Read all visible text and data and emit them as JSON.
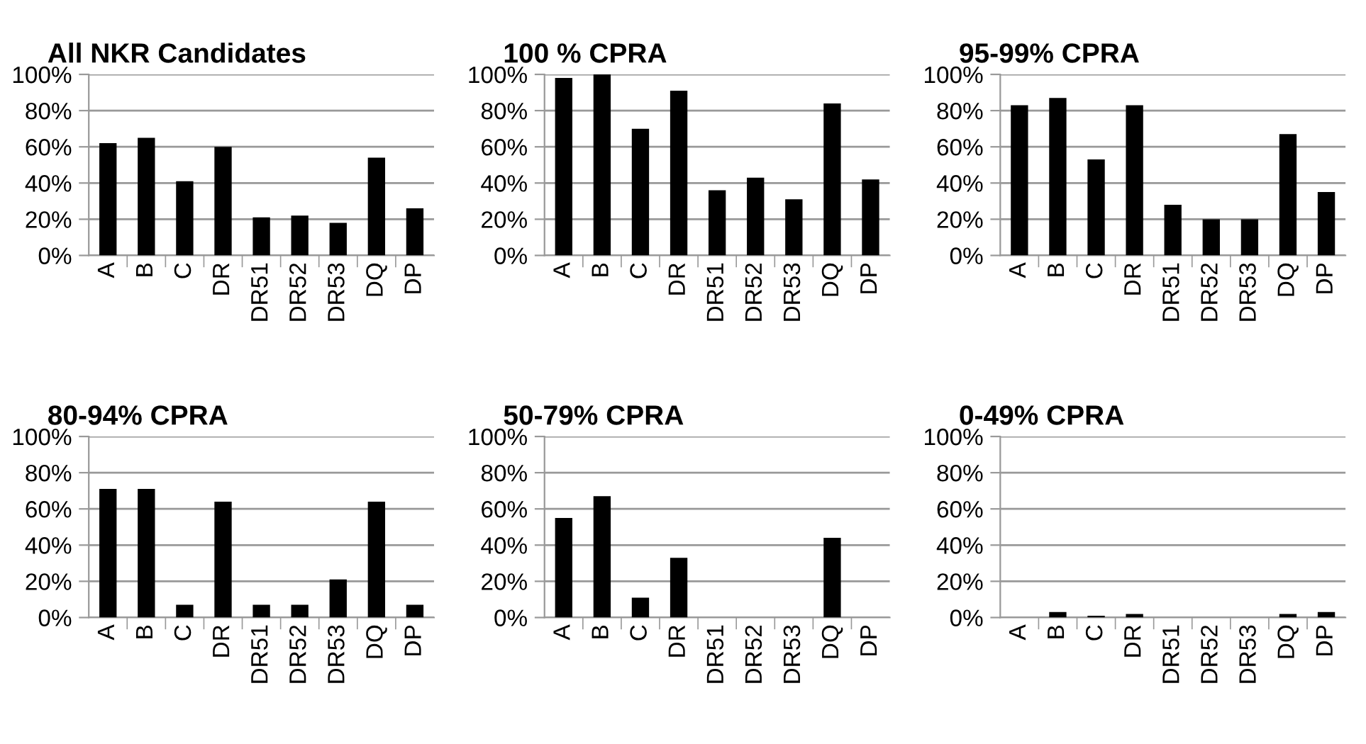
{
  "chart_data": [
    {
      "type": "bar",
      "title": "All NKR Candidates",
      "categories": [
        "A",
        "B",
        "C",
        "DR",
        "DR51",
        "DR52",
        "DR53",
        "DQ",
        "DP"
      ],
      "values": [
        62,
        65,
        41,
        60,
        21,
        22,
        18,
        54,
        26
      ],
      "color": "#000000",
      "ylim": [
        0,
        100
      ],
      "yticks": [
        {
          "value": 0,
          "label": "0%"
        },
        {
          "value": 20,
          "label": "20%"
        },
        {
          "value": 40,
          "label": "40%"
        },
        {
          "value": 60,
          "label": "60%"
        },
        {
          "value": 80,
          "label": "80%"
        },
        {
          "value": 100,
          "label": "100%"
        }
      ],
      "grid": "y"
    },
    {
      "type": "bar",
      "title": "100 % CPRA",
      "categories": [
        "A",
        "B",
        "C",
        "DR",
        "DR51",
        "DR52",
        "DR53",
        "DQ",
        "DP"
      ],
      "values": [
        98,
        100,
        70,
        91,
        36,
        43,
        31,
        84,
        42
      ],
      "color": "#000000",
      "ylim": [
        0,
        100
      ],
      "yticks": [
        {
          "value": 0,
          "label": "0%"
        },
        {
          "value": 20,
          "label": "20%"
        },
        {
          "value": 40,
          "label": "40%"
        },
        {
          "value": 60,
          "label": "60%"
        },
        {
          "value": 80,
          "label": "80%"
        },
        {
          "value": 100,
          "label": "100%"
        }
      ],
      "grid": "y"
    },
    {
      "type": "bar",
      "title": "95-99% CPRA",
      "categories": [
        "A",
        "B",
        "C",
        "DR",
        "DR51",
        "DR52",
        "DR53",
        "DQ",
        "DP"
      ],
      "values": [
        83,
        87,
        53,
        83,
        28,
        20,
        20,
        67,
        35
      ],
      "color": "#000000",
      "ylim": [
        0,
        100
      ],
      "yticks": [
        {
          "value": 0,
          "label": "0%"
        },
        {
          "value": 20,
          "label": "20%"
        },
        {
          "value": 40,
          "label": "40%"
        },
        {
          "value": 60,
          "label": "60%"
        },
        {
          "value": 80,
          "label": "80%"
        },
        {
          "value": 100,
          "label": "100%"
        }
      ],
      "grid": "y"
    },
    {
      "type": "bar",
      "title": "80-94% CPRA",
      "categories": [
        "A",
        "B",
        "C",
        "DR",
        "DR51",
        "DR52",
        "DR53",
        "DQ",
        "DP"
      ],
      "values": [
        71,
        71,
        7,
        64,
        7,
        7,
        21,
        64,
        7
      ],
      "color": "#000000",
      "ylim": [
        0,
        100
      ],
      "yticks": [
        {
          "value": 0,
          "label": "0%"
        },
        {
          "value": 20,
          "label": "20%"
        },
        {
          "value": 40,
          "label": "40%"
        },
        {
          "value": 60,
          "label": "60%"
        },
        {
          "value": 80,
          "label": "80%"
        },
        {
          "value": 100,
          "label": "100%"
        }
      ],
      "grid": "y"
    },
    {
      "type": "bar",
      "title": "50-79% CPRA",
      "categories": [
        "A",
        "B",
        "C",
        "DR",
        "DR51",
        "DR52",
        "DR53",
        "DQ",
        "DP"
      ],
      "values": [
        55,
        67,
        11,
        33,
        0,
        0,
        0,
        44,
        0
      ],
      "color": "#000000",
      "ylim": [
        0,
        100
      ],
      "yticks": [
        {
          "value": 0,
          "label": "0%"
        },
        {
          "value": 20,
          "label": "20%"
        },
        {
          "value": 40,
          "label": "40%"
        },
        {
          "value": 60,
          "label": "60%"
        },
        {
          "value": 80,
          "label": "80%"
        },
        {
          "value": 100,
          "label": "100%"
        }
      ],
      "grid": "y"
    },
    {
      "type": "bar",
      "title": "0-49% CPRA",
      "categories": [
        "A",
        "B",
        "C",
        "DR",
        "DR51",
        "DR52",
        "DR53",
        "DQ",
        "DP"
      ],
      "values": [
        0,
        3,
        1,
        2,
        0,
        0,
        0,
        2,
        3
      ],
      "color": "#000000",
      "ylim": [
        0,
        100
      ],
      "yticks": [
        {
          "value": 0,
          "label": "0%"
        },
        {
          "value": 20,
          "label": "20%"
        },
        {
          "value": 40,
          "label": "40%"
        },
        {
          "value": 60,
          "label": "60%"
        },
        {
          "value": 80,
          "label": "80%"
        },
        {
          "value": 100,
          "label": "100%"
        }
      ],
      "grid": "y"
    }
  ]
}
